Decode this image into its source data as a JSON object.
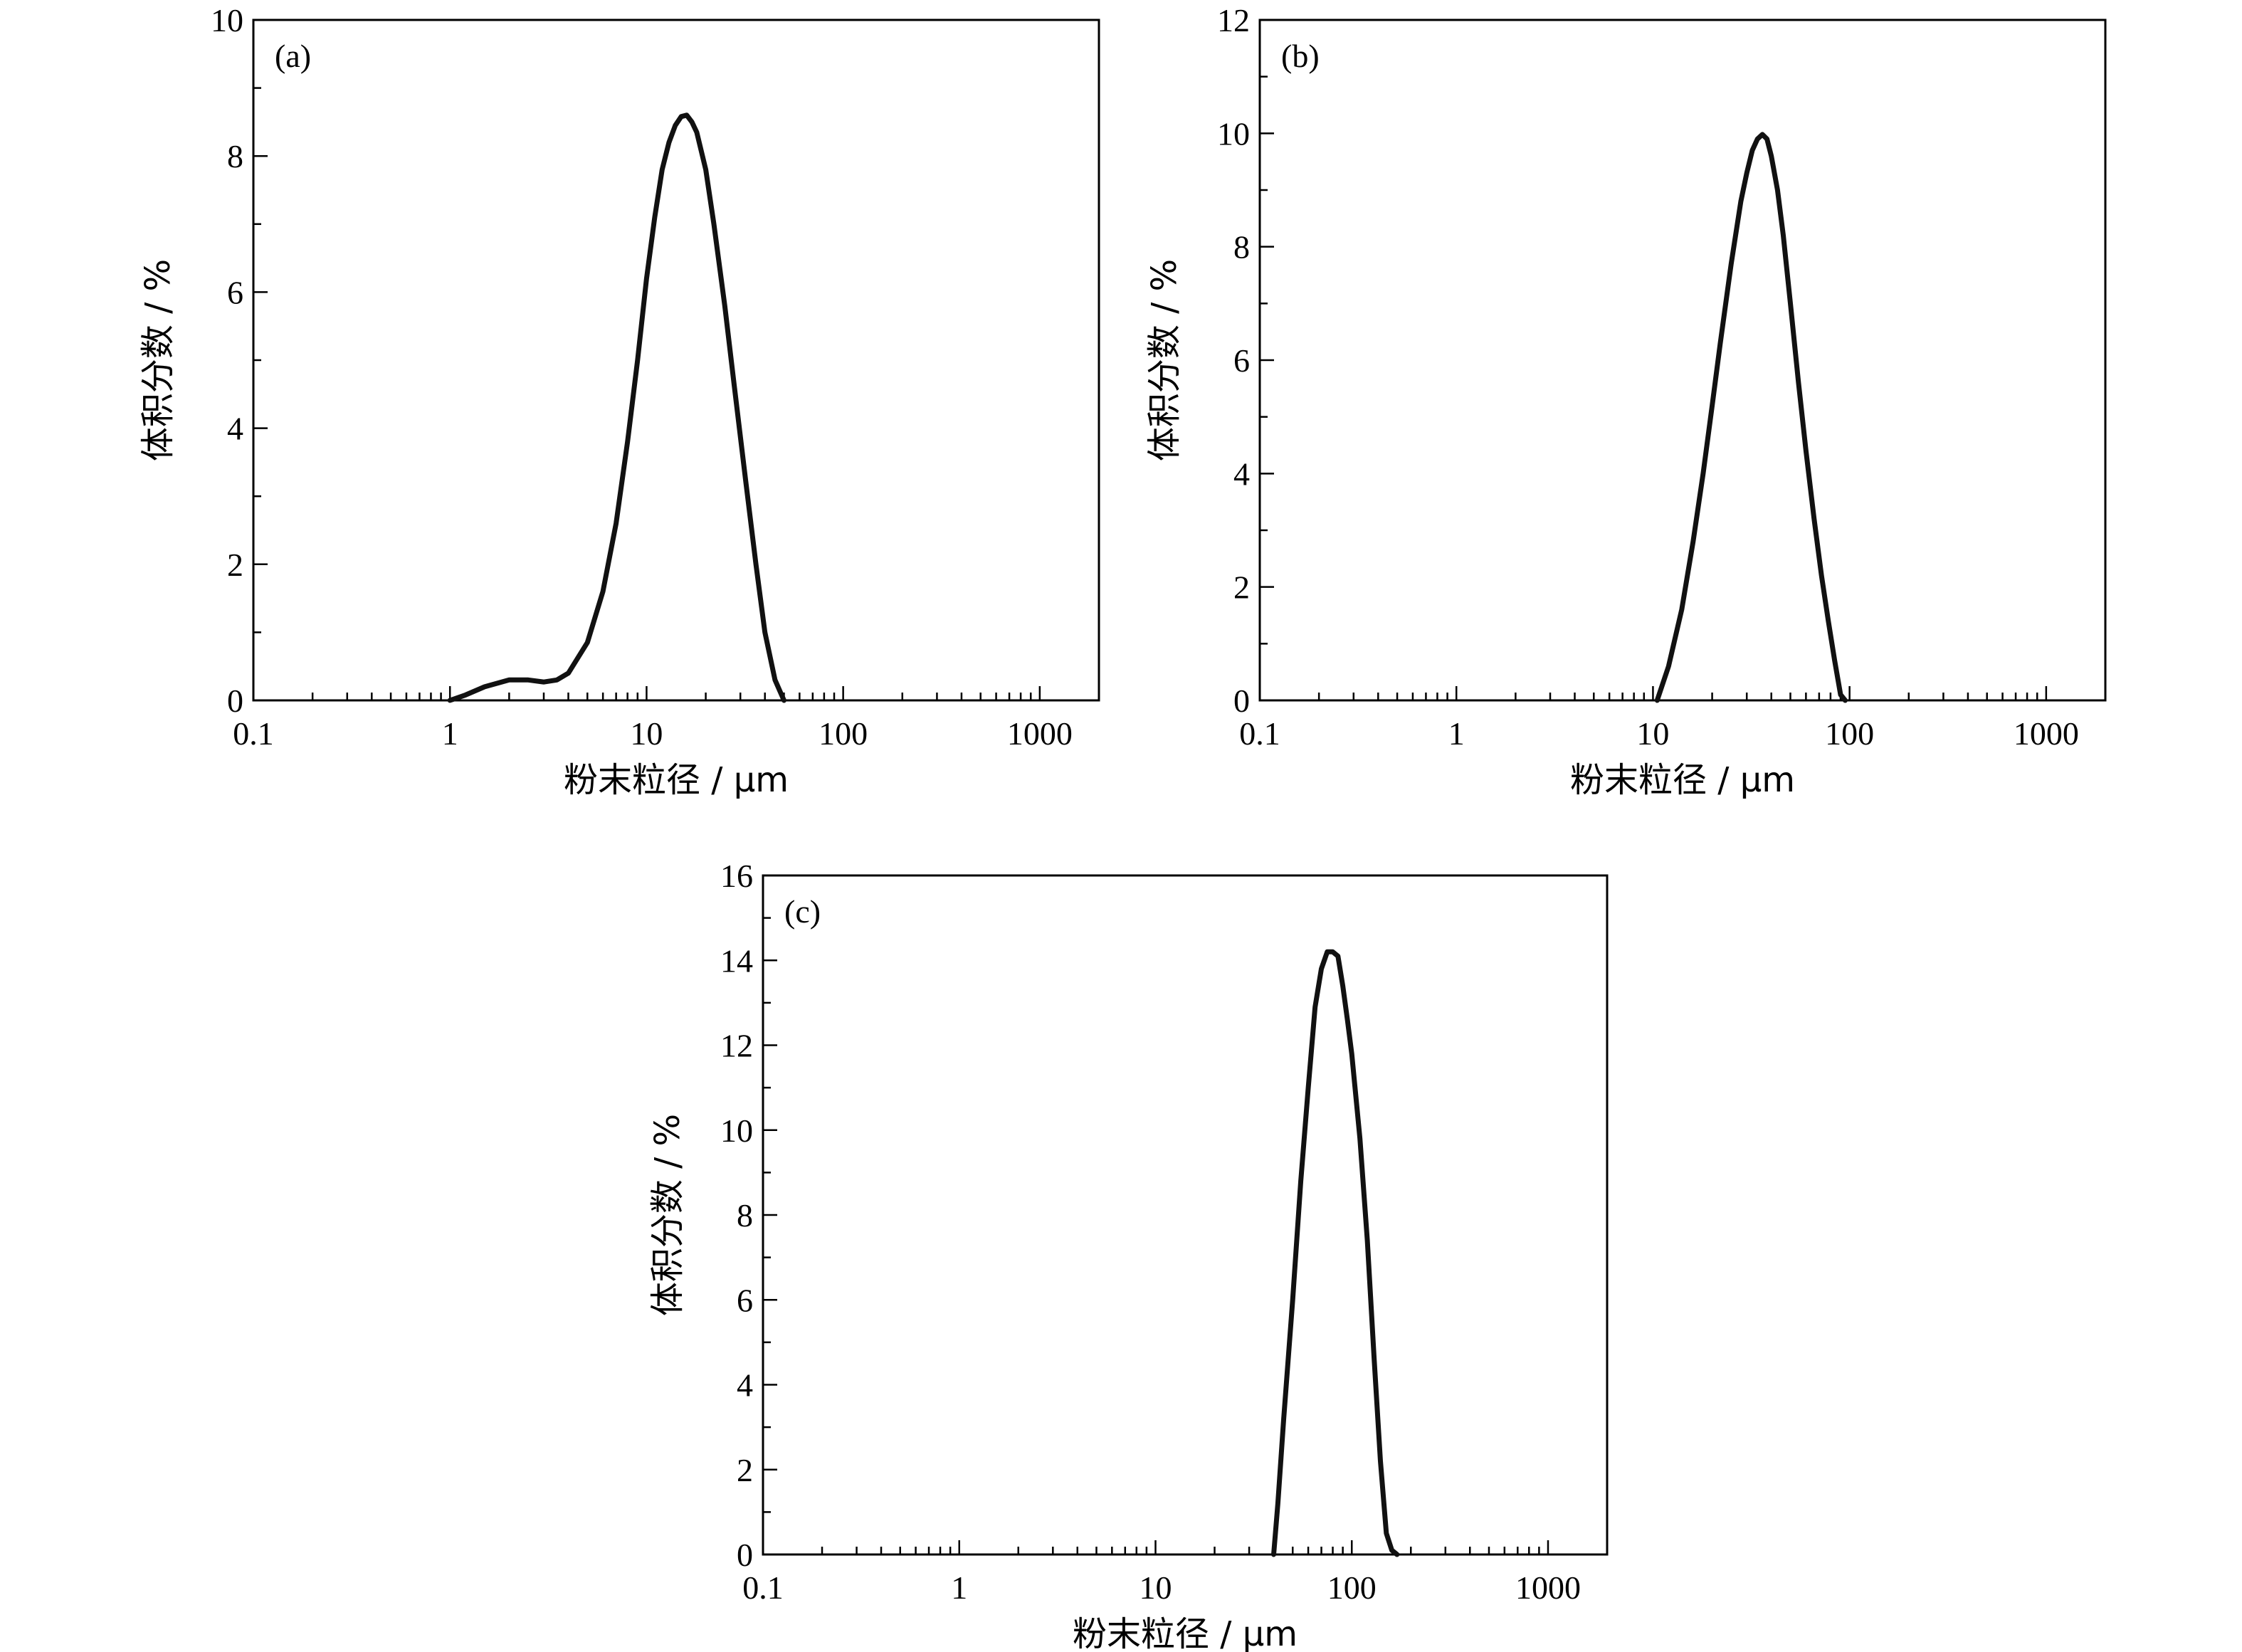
{
  "chart_data": [
    {
      "type": "line",
      "panel_label": "(a)",
      "xlabel": "粉末粒径 / μm",
      "ylabel": "体积分数 / %",
      "xscale": "log",
      "xlim": [
        0.1,
        2000
      ],
      "ylim": [
        0,
        10
      ],
      "xticks": [
        "0.1",
        "1",
        "10",
        "100",
        "1000"
      ],
      "yticks": [
        "0",
        "2",
        "4",
        "6",
        "8",
        "10"
      ],
      "grid": false,
      "legend": "none",
      "series": [
        {
          "x": [
            1.0,
            1.2,
            1.5,
            2.0,
            2.5,
            3.0,
            3.5,
            4.0,
            5.0,
            6.0,
            7.0,
            8.0,
            9.0,
            10.0,
            11.0,
            12.0,
            13.0,
            14.0,
            15.0,
            16.0,
            17.0,
            18.0,
            20.0,
            22.0,
            25.0,
            28.0,
            32.0,
            36.0,
            40.0,
            45.0,
            50.0
          ],
          "y": [
            0.0,
            0.08,
            0.2,
            0.3,
            0.3,
            0.27,
            0.3,
            0.4,
            0.85,
            1.6,
            2.6,
            3.8,
            5.0,
            6.2,
            7.1,
            7.8,
            8.2,
            8.45,
            8.58,
            8.6,
            8.5,
            8.35,
            7.8,
            7.0,
            5.8,
            4.6,
            3.2,
            2.0,
            1.0,
            0.3,
            0.0
          ]
        }
      ]
    },
    {
      "type": "line",
      "panel_label": "(b)",
      "xlabel": "粉末粒径 / μm",
      "ylabel": "体积分数 / %",
      "xscale": "log",
      "xlim": [
        0.1,
        2000
      ],
      "ylim": [
        0,
        12
      ],
      "xticks": [
        "0.1",
        "1",
        "10",
        "100",
        "1000"
      ],
      "yticks": [
        "0",
        "2",
        "4",
        "6",
        "8",
        "10",
        "12"
      ],
      "grid": false,
      "legend": "none",
      "series": [
        {
          "x": [
            10.5,
            12.0,
            14.0,
            16.0,
            18.0,
            20.0,
            22.0,
            25.0,
            28.0,
            30.0,
            32.0,
            34.0,
            36.0,
            38.0,
            40.0,
            43.0,
            46.0,
            50.0,
            55.0,
            60.0,
            66.0,
            72.0,
            78.0,
            84.0,
            90.0,
            95.0
          ],
          "y": [
            0.0,
            0.6,
            1.6,
            2.8,
            4.0,
            5.2,
            6.3,
            7.7,
            8.8,
            9.3,
            9.7,
            9.9,
            9.98,
            9.9,
            9.6,
            9.0,
            8.2,
            7.0,
            5.6,
            4.4,
            3.2,
            2.2,
            1.4,
            0.7,
            0.1,
            0.0
          ]
        }
      ]
    },
    {
      "type": "line",
      "panel_label": "(c)",
      "xlabel": "粉末粒径 / μm",
      "ylabel": "体积分数 / %",
      "xscale": "log",
      "xlim": [
        0.1,
        2000
      ],
      "ylim": [
        0,
        16
      ],
      "xticks": [
        "0.1",
        "1",
        "10",
        "100",
        "1000"
      ],
      "yticks": [
        "0",
        "2",
        "4",
        "6",
        "8",
        "10",
        "12",
        "14",
        "16"
      ],
      "grid": false,
      "legend": "none",
      "series": [
        {
          "x": [
            40.0,
            42.0,
            45.0,
            50.0,
            55.0,
            60.0,
            65.0,
            70.0,
            75.0,
            80.0,
            85.0,
            90.0,
            95.0,
            100.0,
            110.0,
            120.0,
            130.0,
            140.0,
            150.0,
            160.0,
            170.0
          ],
          "y": [
            0.0,
            1.2,
            3.2,
            6.0,
            8.8,
            11.0,
            12.9,
            13.8,
            14.2,
            14.2,
            14.1,
            13.4,
            12.6,
            11.8,
            9.8,
            7.4,
            4.6,
            2.2,
            0.5,
            0.1,
            0.0
          ]
        }
      ]
    }
  ]
}
